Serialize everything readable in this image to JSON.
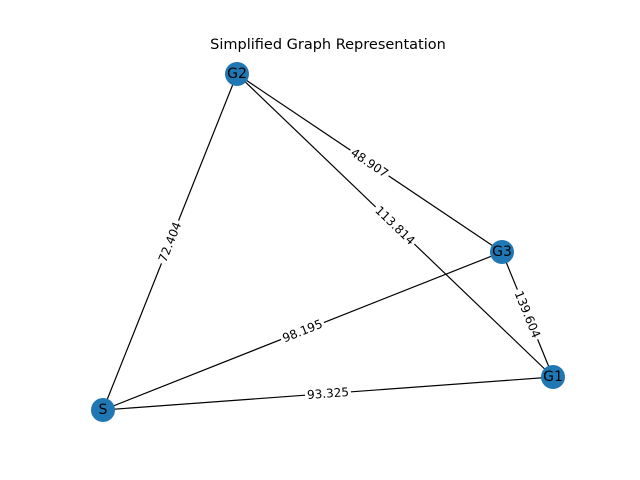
{
  "title": "Simplified Graph Representation",
  "colors": {
    "node": "#1f77b4",
    "edge": "#000000",
    "label_bg": "#ffffff"
  },
  "nodes": [
    {
      "id": "S",
      "label": "S"
    },
    {
      "id": "G1",
      "label": "G1"
    },
    {
      "id": "G2",
      "label": "G2"
    },
    {
      "id": "G3",
      "label": "G3"
    }
  ],
  "edges": [
    {
      "from": "S",
      "to": "G2",
      "label": "72.404"
    },
    {
      "from": "S",
      "to": "G3",
      "label": "98.195"
    },
    {
      "from": "S",
      "to": "G1",
      "label": "93.325"
    },
    {
      "from": "G2",
      "to": "G3",
      "label": "48.907"
    },
    {
      "from": "G2",
      "to": "G1",
      "label": "113.814"
    },
    {
      "from": "G3",
      "to": "G1",
      "label": "139.604"
    }
  ]
}
